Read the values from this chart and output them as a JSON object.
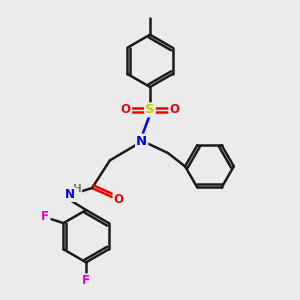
{
  "background_color": "#ebebeb",
  "bond_color": "#1a1a1a",
  "bond_width": 1.8,
  "atom_colors": {
    "N": "#0000ee",
    "O": "#ee0000",
    "S": "#cccc00",
    "F": "#dd00dd",
    "H": "#777777",
    "C": "#1a1a1a"
  },
  "figsize": [
    3.0,
    3.0
  ],
  "dpi": 100
}
